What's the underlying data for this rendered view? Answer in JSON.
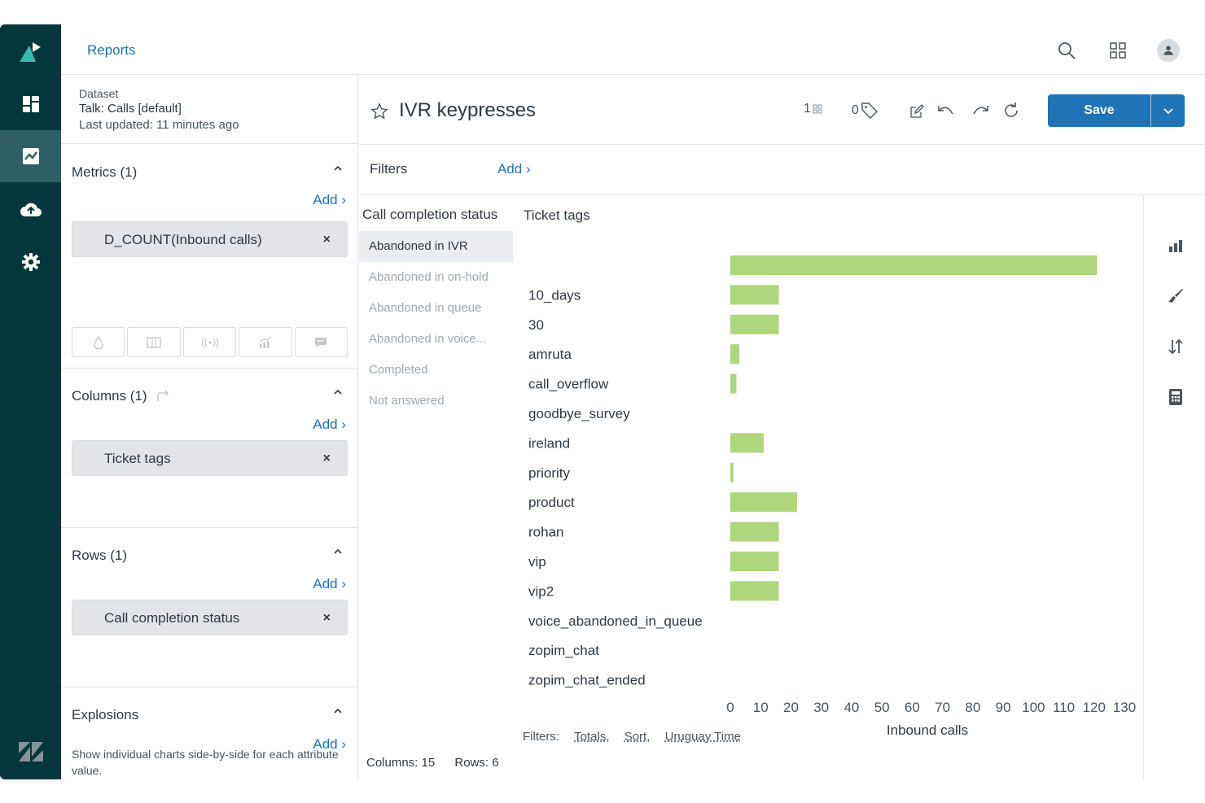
{
  "header": {
    "title": "Reports"
  },
  "nav": {
    "items": [
      "logo-icon",
      "dashboard-icon",
      "reports-icon",
      "datasets-icon",
      "settings-icon",
      "zendesk-icon"
    ],
    "active": "reports-icon"
  },
  "dataset": {
    "label": "Dataset",
    "name": "Talk: Calls [default]",
    "updated": "Last updated: 11 minutes ago"
  },
  "sections": {
    "metrics": {
      "title": "Metrics (1)",
      "add": "Add ›",
      "pill": "D_COUNT(Inbound calls)"
    },
    "columns": {
      "title": "Columns (1)",
      "add": "Add ›",
      "pill": "Ticket tags"
    },
    "rows": {
      "title": "Rows (1)",
      "add": "Add ›",
      "pill": "Call completion status"
    },
    "explosions": {
      "title": "Explosions",
      "add": "Add ›",
      "description": "Show individual charts side-by-side for each attribute value."
    }
  },
  "report": {
    "title": "IVR keypresses",
    "count_a": "1",
    "count_b": "0",
    "save_label": "Save"
  },
  "filters": {
    "label": "Filters",
    "add": "Add ›"
  },
  "table": {
    "row_header": "Call completion status",
    "col_header": "Ticket tags",
    "row_items": [
      "Abandoned in IVR",
      "Abandoned in on-hold",
      "Abandoned in queue",
      "Abandoned in voice...",
      "Completed",
      "Not answered"
    ],
    "selected_row": "Abandoned in IVR"
  },
  "footer": {
    "filters_label": "Filters:",
    "links": [
      "Totals,",
      "Sort,",
      "Uruguay Time"
    ],
    "columns": "Columns: 15",
    "rows": "Rows: 6"
  },
  "colors": {
    "bar": "#aed67c",
    "accent": "#1f73b7",
    "nav": "#03363d"
  },
  "chart_data": {
    "type": "bar",
    "orientation": "horizontal",
    "categories": [
      "",
      "10_days",
      "30",
      "amruta",
      "call_overflow",
      "goodbye_survey",
      "ireland",
      "priority",
      "product",
      "rohan",
      "vip",
      "vip2",
      "voice_abandoned_in_queue",
      "zopim_chat",
      "zopim_chat_ended"
    ],
    "values": [
      121,
      16,
      16,
      3,
      2,
      0,
      11,
      1,
      22,
      16,
      16,
      16,
      0,
      0,
      0
    ],
    "xlabel": "Inbound calls",
    "xlim": [
      0,
      130
    ],
    "xticks": [
      "0",
      "10",
      "20",
      "30",
      "40",
      "50",
      "60",
      "70",
      "80",
      "90",
      "100",
      "110",
      "120",
      "130"
    ],
    "grid": false,
    "legend": "none"
  }
}
